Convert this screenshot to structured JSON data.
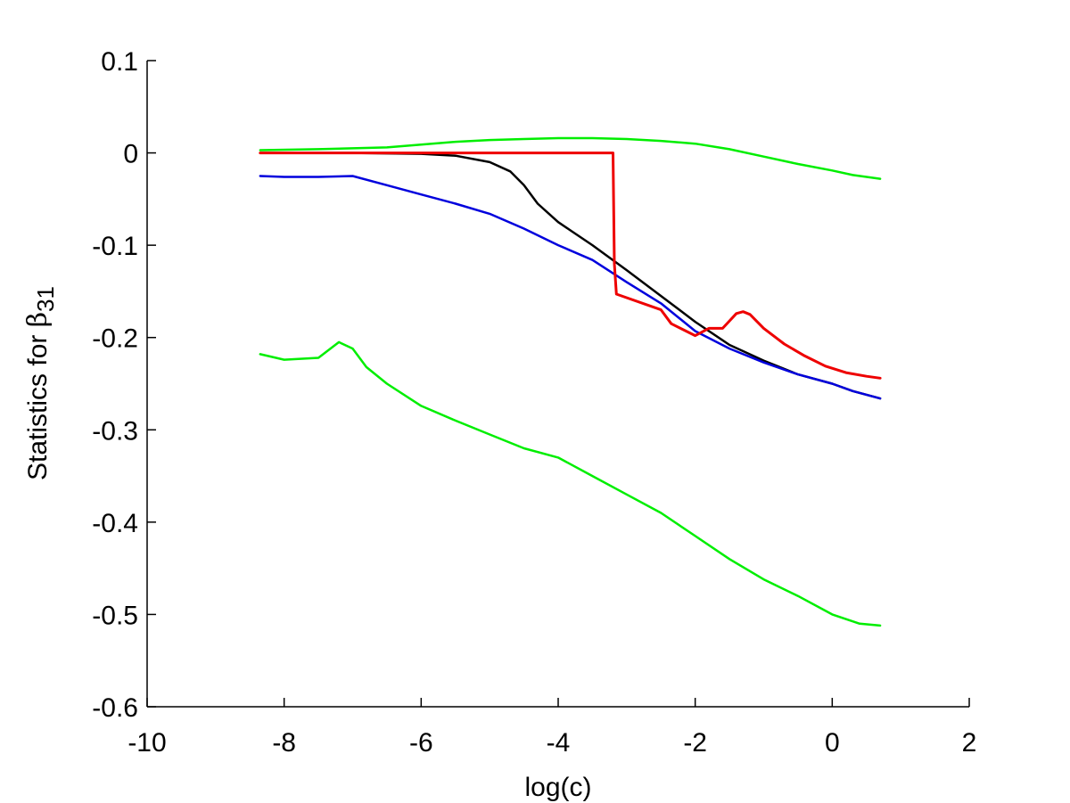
{
  "chart_data": {
    "type": "line",
    "title": "",
    "xlabel": "log(c)",
    "ylabel_main": "Statistics for ",
    "ylabel_symbol": "β",
    "ylabel_subscript": "31",
    "xlim": [
      -10,
      2
    ],
    "ylim": [
      -0.6,
      0.1
    ],
    "xticks": [
      -10,
      -8,
      -6,
      -4,
      -2,
      0,
      2
    ],
    "xtick_labels": [
      "-10",
      "-8",
      "-6",
      "-4",
      "-2",
      "0",
      "2"
    ],
    "yticks": [
      0.1,
      0,
      -0.1,
      -0.2,
      -0.3,
      -0.4,
      -0.5,
      -0.6
    ],
    "ytick_labels": [
      "0.1",
      "0",
      "-0.1",
      "-0.2",
      "-0.3",
      "-0.4",
      "-0.5",
      "-0.6"
    ],
    "grid": false,
    "series": [
      {
        "color": "#00ee00",
        "x": [
          -8.35,
          -7.5,
          -7.0,
          -6.5,
          -6.0,
          -5.5,
          -5.0,
          -4.5,
          -4.0,
          -3.5,
          -3.0,
          -2.5,
          -2.0,
          -1.5,
          -1.0,
          -0.5,
          0.0,
          0.3,
          0.5,
          0.7
        ],
        "y": [
          0.003,
          0.004,
          0.005,
          0.006,
          0.009,
          0.012,
          0.014,
          0.015,
          0.016,
          0.016,
          0.015,
          0.013,
          0.01,
          0.004,
          -0.004,
          -0.012,
          -0.019,
          -0.024,
          -0.026,
          -0.028
        ]
      },
      {
        "color": "#000000",
        "x": [
          -8.35,
          -7.0,
          -6.0,
          -5.5,
          -5.0,
          -4.7,
          -4.5,
          -4.3,
          -4.0,
          -3.8,
          -3.5,
          -3.0,
          -2.5,
          -2.0,
          -1.5,
          -1.0,
          -0.5,
          0.0,
          0.3,
          0.7
        ],
        "y": [
          0.0,
          0.0,
          -0.001,
          -0.003,
          -0.01,
          -0.02,
          -0.035,
          -0.055,
          -0.075,
          -0.085,
          -0.1,
          -0.127,
          -0.155,
          -0.183,
          -0.208,
          -0.225,
          -0.24,
          -0.25,
          -0.258,
          -0.266
        ]
      },
      {
        "color": "#0000dd",
        "x": [
          -8.35,
          -8.0,
          -7.5,
          -7.0,
          -6.5,
          -6.0,
          -5.5,
          -5.0,
          -4.5,
          -4.0,
          -3.5,
          -3.0,
          -2.5,
          -2.0,
          -1.5,
          -1.0,
          -0.5,
          0.0,
          0.3,
          0.7
        ],
        "y": [
          -0.025,
          -0.026,
          -0.026,
          -0.025,
          -0.035,
          -0.045,
          -0.055,
          -0.066,
          -0.082,
          -0.1,
          -0.116,
          -0.14,
          -0.163,
          -0.193,
          -0.212,
          -0.227,
          -0.24,
          -0.25,
          -0.258,
          -0.266
        ]
      },
      {
        "color": "#ee0000",
        "x": [
          -8.35,
          -3.2,
          -3.18,
          -3.15,
          -2.5,
          -2.35,
          -2.0,
          -1.8,
          -1.6,
          -1.5,
          -1.4,
          -1.3,
          -1.2,
          -1.0,
          -0.7,
          -0.4,
          -0.1,
          0.2,
          0.5,
          0.7
        ],
        "y": [
          0.0,
          0.0,
          -0.12,
          -0.153,
          -0.17,
          -0.185,
          -0.198,
          -0.19,
          -0.19,
          -0.182,
          -0.174,
          -0.172,
          -0.175,
          -0.19,
          -0.207,
          -0.22,
          -0.231,
          -0.238,
          -0.242,
          -0.244
        ]
      },
      {
        "color": "#00ee00",
        "x": [
          -8.35,
          -8.0,
          -7.5,
          -7.2,
          -7.0,
          -6.8,
          -6.5,
          -6.0,
          -5.5,
          -5.0,
          -4.5,
          -4.0,
          -3.5,
          -3.0,
          -2.5,
          -2.0,
          -1.5,
          -1.0,
          -0.5,
          0.0,
          0.4,
          0.7
        ],
        "y": [
          -0.218,
          -0.224,
          -0.222,
          -0.205,
          -0.212,
          -0.232,
          -0.25,
          -0.274,
          -0.29,
          -0.305,
          -0.32,
          -0.33,
          -0.35,
          -0.37,
          -0.39,
          -0.415,
          -0.44,
          -0.462,
          -0.48,
          -0.5,
          -0.51,
          -0.512
        ]
      }
    ]
  }
}
